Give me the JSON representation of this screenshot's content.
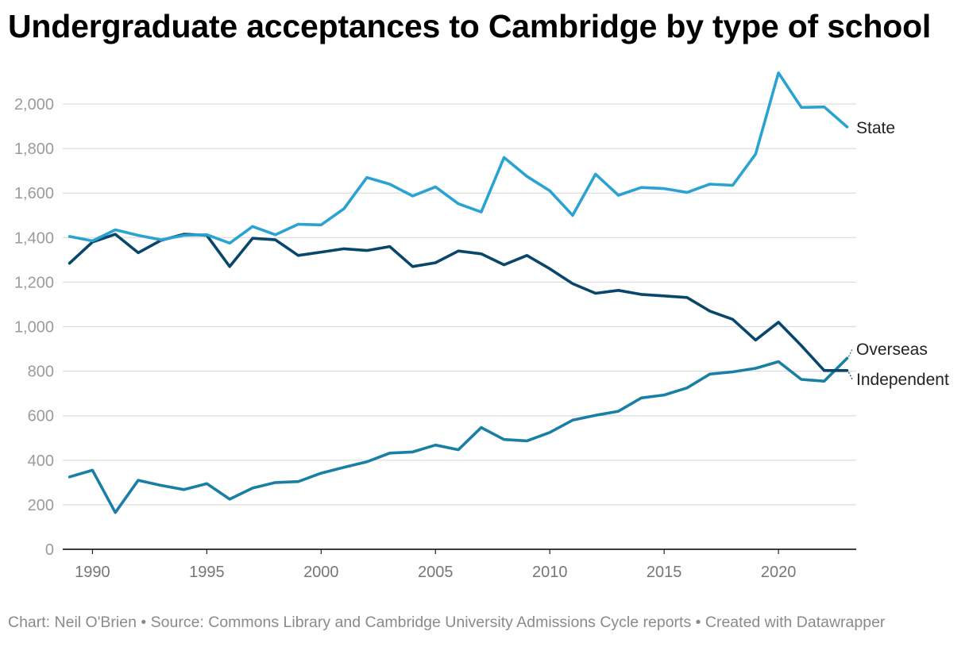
{
  "header": {
    "title": "Undergraduate acceptances to Cambridge by type of school"
  },
  "footer": {
    "credit": "Chart: Neil O'Brien",
    "source": "Source: Commons Library and Cambridge University Admissions Cycle reports",
    "tool": "Created with Datawrapper",
    "separator": " • "
  },
  "colors": {
    "State": "#2aa3d3",
    "Independent": "#08476b",
    "Overseas": "#1a7fa5",
    "grid": "#dcdcdc",
    "tick_label": "#9b9b9b",
    "axis_label": "#777777",
    "series_label": "#222222"
  },
  "chart_data": {
    "type": "line",
    "title": "Undergraduate acceptances to Cambridge by type of school",
    "xlabel": "",
    "ylabel": "",
    "xlim": [
      1988.7,
      2023.4
    ],
    "ylim": [
      0,
      2100
    ],
    "yticks": [
      0,
      200,
      400,
      600,
      800,
      1000,
      1200,
      1400,
      1600,
      1800,
      2000
    ],
    "ytick_labels": [
      "0",
      "200",
      "400",
      "600",
      "800",
      "1,000",
      "1,200",
      "1,400",
      "1,600",
      "1,800",
      "2,000"
    ],
    "xticks": [
      1990,
      1995,
      2000,
      2005,
      2010,
      2015,
      2020
    ],
    "xtick_labels": [
      "1990",
      "1995",
      "2000",
      "2005",
      "2010",
      "2015",
      "2020"
    ],
    "grid": true,
    "legend": "direct labels at right end of lines",
    "x": [
      1989,
      1990,
      1991,
      1992,
      1993,
      1994,
      1995,
      1996,
      1997,
      1998,
      1999,
      2000,
      2001,
      2002,
      2003,
      2004,
      2005,
      2006,
      2007,
      2008,
      2009,
      2010,
      2011,
      2012,
      2013,
      2014,
      2015,
      2016,
      2017,
      2018,
      2019,
      2020,
      2021,
      2022,
      2023
    ],
    "series": [
      {
        "name": "State",
        "label": "State",
        "values": [
          1405,
          1385,
          1435,
          1410,
          1390,
          1410,
          1413,
          1375,
          1450,
          1413,
          1460,
          1457,
          1530,
          1670,
          1640,
          1587,
          1628,
          1552,
          1515,
          1760,
          1675,
          1610,
          1500,
          1685,
          1590,
          1625,
          1620,
          1603,
          1640,
          1635,
          1775,
          2140,
          1985,
          1987,
          1897
        ]
      },
      {
        "name": "Independent",
        "label": "Independent",
        "values": [
          1285,
          1380,
          1415,
          1332,
          1388,
          1415,
          1410,
          1270,
          1397,
          1390,
          1320,
          1335,
          1350,
          1342,
          1360,
          1270,
          1287,
          1340,
          1327,
          1278,
          1320,
          1260,
          1193,
          1150,
          1163,
          1145,
          1138,
          1131,
          1070,
          1033,
          940,
          1020,
          915,
          803,
          803
        ]
      },
      {
        "name": "Overseas",
        "label": "Overseas",
        "values": [
          325,
          355,
          165,
          310,
          287,
          268,
          295,
          225,
          275,
          300,
          304,
          342,
          368,
          393,
          432,
          437,
          468,
          447,
          547,
          493,
          487,
          525,
          580,
          602,
          620,
          680,
          693,
          725,
          787,
          797,
          813,
          843,
          763,
          755,
          858
        ]
      }
    ]
  }
}
